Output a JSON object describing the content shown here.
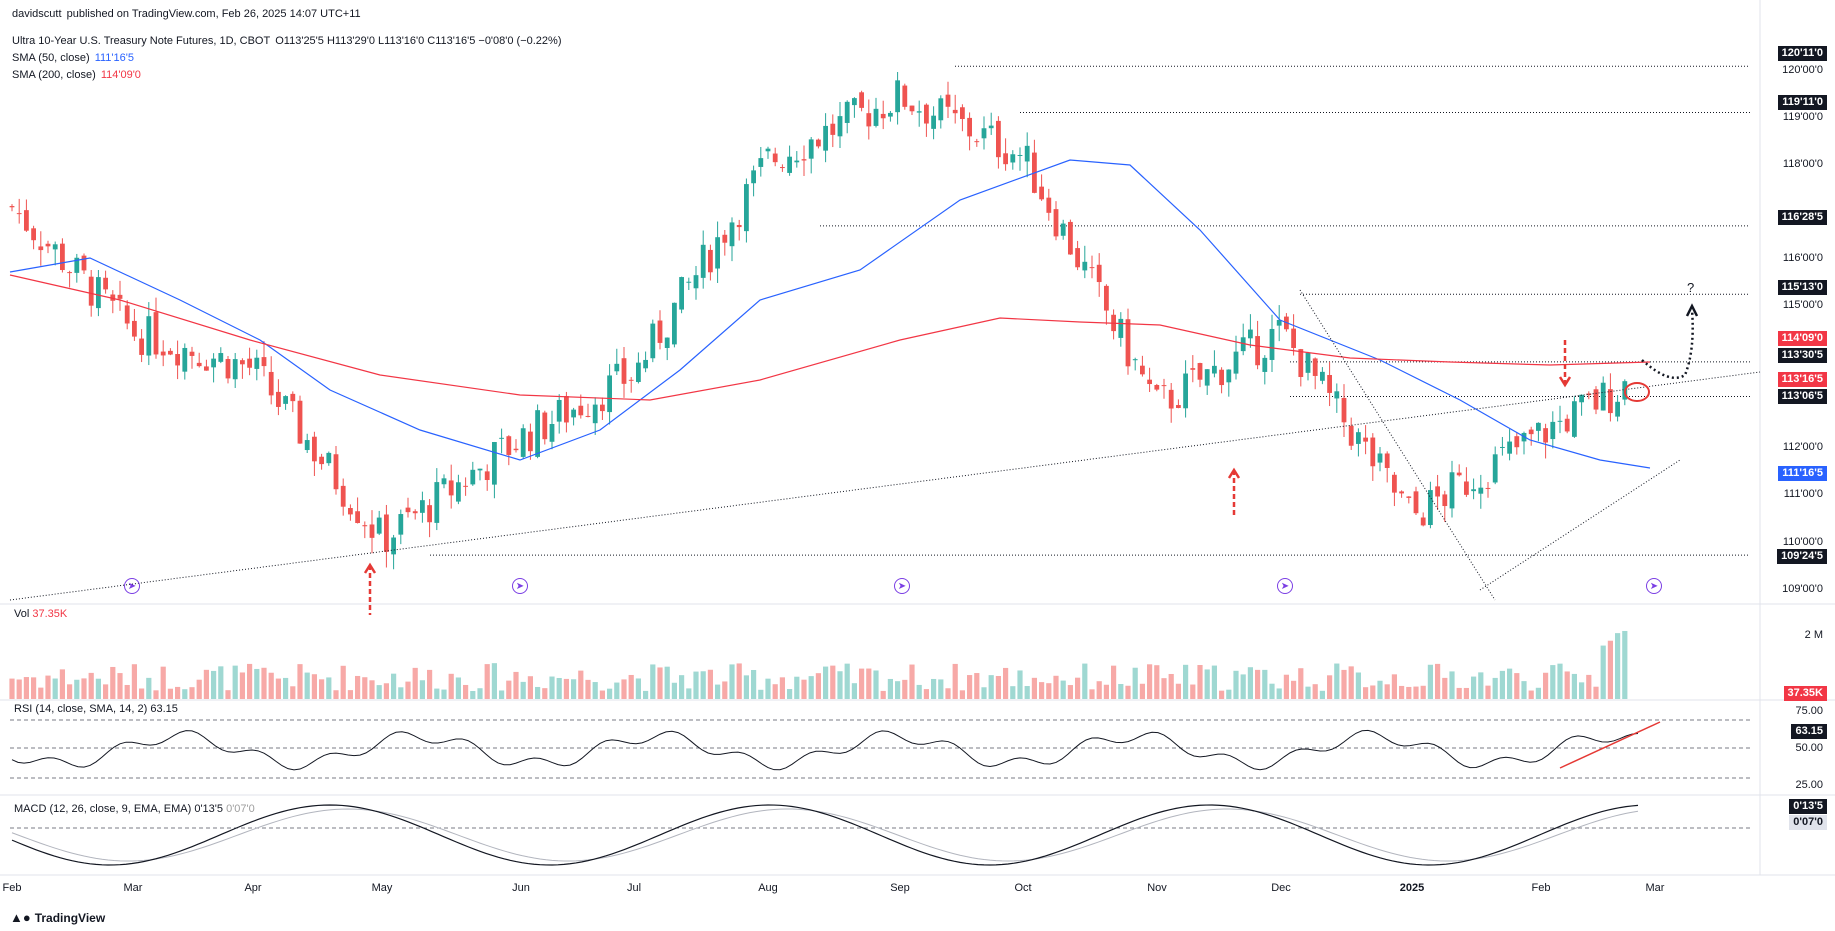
{
  "publisher": {
    "user": "davidscutt",
    "text": "published on TradingView.com, Feb 26, 2025 14:07 UTC+11"
  },
  "legend": {
    "title": "Ultra 10-Year U.S. Treasury Note Futures, 1D, CBOT",
    "ohlc": "O113'25'5  H113'29'0  L113'16'0  C113'16'5  −0'08'0 (−0.22%)",
    "sma50_label": "SMA (50, close)",
    "sma50_value": "111'16'5",
    "sma200_label": "SMA (200, close)",
    "sma200_value": "114'09'0",
    "vol_label": "Vol",
    "vol_value": "37.35K",
    "rsi_label": "RSI (14, close, SMA, 14, 2)",
    "rsi_value": "63.15",
    "macd_label": "MACD (12, 26, close, 9, EMA, EMA)",
    "macd_value": "0'13'5",
    "macd_signal": "0'07'0"
  },
  "price_axis_ticks": [
    "120'00'0",
    "119'00'0",
    "118'00'0",
    "116'00'0",
    "115'00'0",
    "112'00'0",
    "111'00'0",
    "110'00'0",
    "109'00'0"
  ],
  "price_labels": [
    {
      "text": "120'11'0",
      "bg": "#131722",
      "fg": "#ffffff"
    },
    {
      "text": "119'11'0",
      "bg": "#131722",
      "fg": "#ffffff"
    },
    {
      "text": "116'28'5",
      "bg": "#131722",
      "fg": "#ffffff"
    },
    {
      "text": "115'13'0",
      "bg": "#131722",
      "fg": "#ffffff"
    },
    {
      "text": "114'09'0",
      "bg": "#f23645",
      "fg": "#ffffff"
    },
    {
      "text": "113'30'5",
      "bg": "#131722",
      "fg": "#ffffff"
    },
    {
      "text": "113'16'5",
      "bg": "#f23645",
      "fg": "#ffffff"
    },
    {
      "text": "113'06'5",
      "bg": "#131722",
      "fg": "#ffffff"
    },
    {
      "text": "111'16'5",
      "bg": "#2962ff",
      "fg": "#ffffff"
    },
    {
      "text": "109'24'5",
      "bg": "#131722",
      "fg": "#ffffff"
    }
  ],
  "vol_axis": {
    "tick": "2 M",
    "last": "37.35K"
  },
  "rsi_axis": {
    "ticks": [
      "75.00",
      "50.00",
      "25.00"
    ],
    "last": "63.15"
  },
  "macd_axis": {
    "last": "0'13'5",
    "signal": "0'07'0"
  },
  "x_axis_ticks": [
    "Feb",
    "Mar",
    "Apr",
    "May",
    "Jun",
    "Jul",
    "Aug",
    "Sep",
    "Oct",
    "Nov",
    "Dec",
    "2025",
    "Feb",
    "Mar"
  ],
  "annotation_question": "?",
  "brand": "TradingView",
  "colors": {
    "up": "#26a69a",
    "down": "#ef5350",
    "sma50": "#2962ff",
    "sma200": "#f23645",
    "arrow": "#e53935"
  },
  "chart_data": {
    "type": "candlestick",
    "title": "Ultra 10-Year U.S. Treasury Note Futures, 1D, CBOT",
    "y_range": [
      108.8,
      120.8
    ],
    "approx_close_path": [
      {
        "x": "Feb",
        "y": 117.3
      },
      {
        "x": "Mar",
        "y": 114.6
      },
      {
        "x": "Apr",
        "y": 113.8
      },
      {
        "x": "May",
        "y": 110.1
      },
      {
        "x": "Jun",
        "y": 112.3
      },
      {
        "x": "Jul",
        "y": 113.7
      },
      {
        "x": "Aug",
        "y": 118.3
      },
      {
        "x": "Sep",
        "y": 119.7
      },
      {
        "x": "Oct",
        "y": 118.4
      },
      {
        "x": "Nov",
        "y": 113.0
      },
      {
        "x": "Dec",
        "y": 114.6
      },
      {
        "x": "2025",
        "y": 110.6
      },
      {
        "x": "Feb",
        "y": 112.4
      },
      {
        "x": "Mar",
        "y": 113.5
      }
    ],
    "horizontal_levels": [
      120.34,
      119.34,
      116.89,
      115.41,
      113.95,
      113.2,
      109.77
    ],
    "series": [
      {
        "name": "SMA (50, close)",
        "last": 111.52
      },
      {
        "name": "SMA (200, close)",
        "last": 114.28
      }
    ]
  }
}
